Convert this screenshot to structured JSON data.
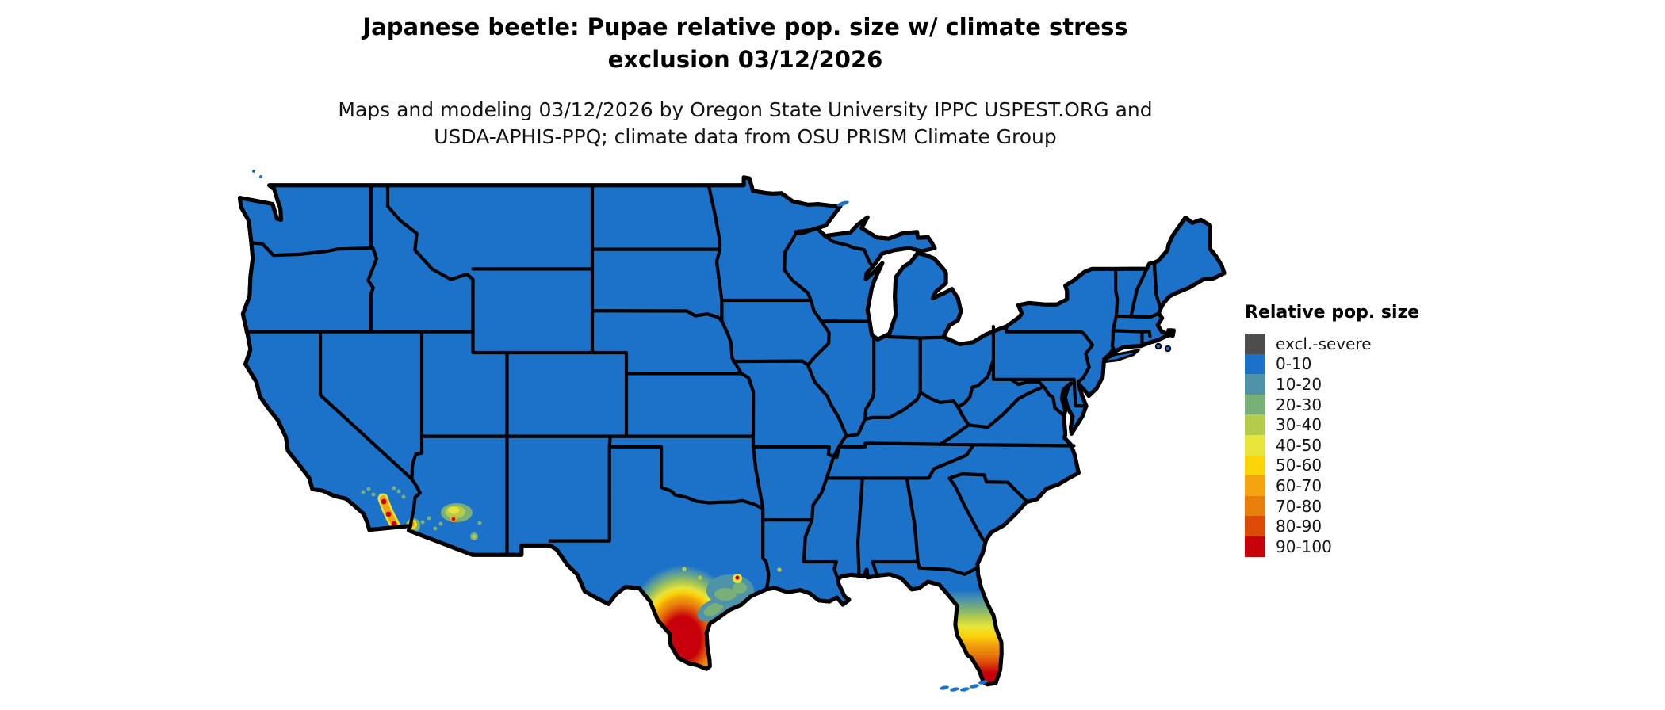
{
  "header": {
    "title_line1": "Japanese beetle: Pupae relative pop. size w/ climate stress",
    "title_line2": "exclusion 03/12/2026",
    "subtitle_line1": "Maps and modeling 03/12/2026 by Oregon State University IPPC USPEST.ORG and",
    "subtitle_line2": "USDA-APHIS-PPQ; climate data from OSU PRISM Climate Group"
  },
  "legend": {
    "title": "Relative pop. size",
    "items": [
      {
        "label": "excl.-severe",
        "color": "#4D4D4D"
      },
      {
        "label": "0-10",
        "color": "#1C72C8"
      },
      {
        "label": "10-20",
        "color": "#4E93A8"
      },
      {
        "label": "20-30",
        "color": "#79B077"
      },
      {
        "label": "30-40",
        "color": "#B4CB4C"
      },
      {
        "label": "40-50",
        "color": "#E7E43C"
      },
      {
        "label": "50-60",
        "color": "#FBD409"
      },
      {
        "label": "60-70",
        "color": "#F2A30D"
      },
      {
        "label": "70-80",
        "color": "#E87E0B"
      },
      {
        "label": "80-90",
        "color": "#DC4A08"
      },
      {
        "label": "90-100",
        "color": "#C8000C"
      }
    ]
  },
  "map": {
    "land_color": "#1C72C8",
    "border_color": "#000000",
    "water_color": "#FFFFFF",
    "hotspot_regions": [
      "South Texas / Rio Grande Valley",
      "South Florida peninsula",
      "Houston / upper Texas coast",
      "Imperial and Coachella Valleys, California",
      "Phoenix and southwest Arizona",
      "Yuma / lower Colorado River"
    ]
  }
}
